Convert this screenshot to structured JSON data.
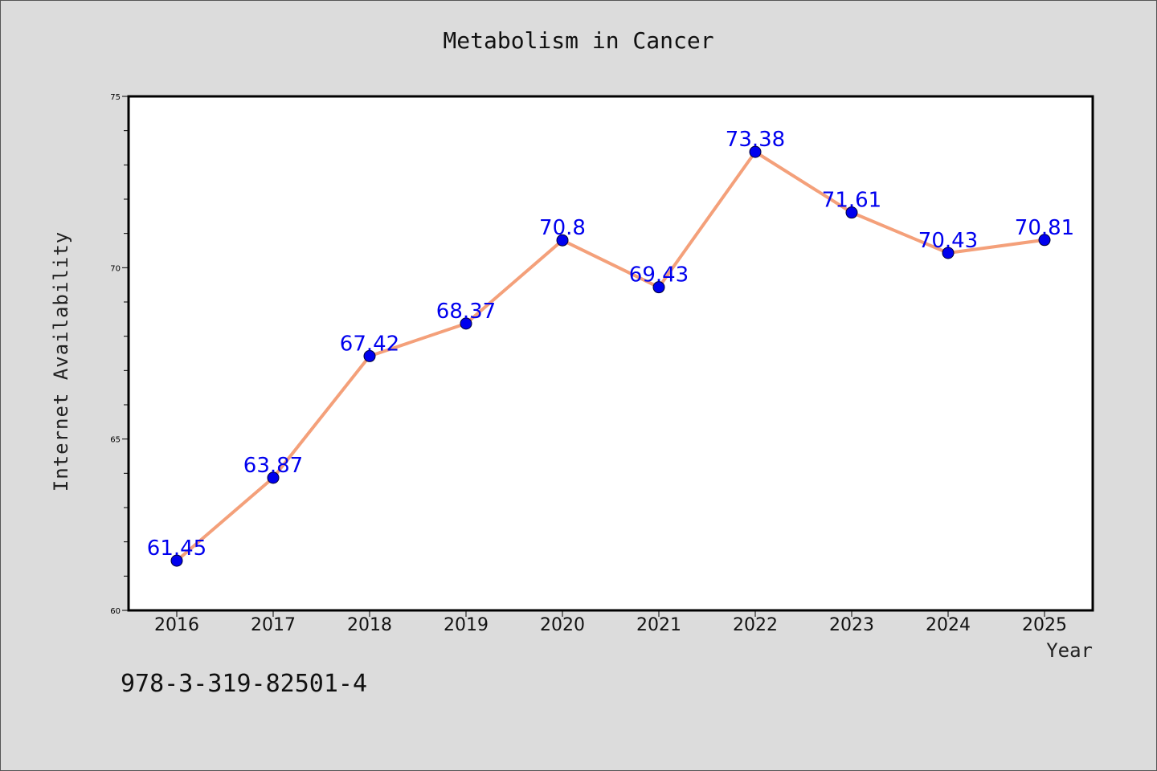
{
  "chart_data": {
    "type": "line",
    "title": "Metabolism in Cancer",
    "xlabel": "Year",
    "ylabel": "Internet Availability",
    "x": [
      "2016",
      "2017",
      "2018",
      "2019",
      "2020",
      "2021",
      "2022",
      "2023",
      "2024",
      "2025"
    ],
    "series": [
      {
        "values": [
          61.45,
          63.87,
          67.42,
          68.37,
          70.8,
          69.43,
          73.38,
          71.61,
          70.43,
          70.81
        ]
      }
    ],
    "data_labels": [
      "61.45",
      "63.87",
      "67.42",
      "68.37",
      "70.8",
      "69.43",
      "73.38",
      "71.61",
      "70.43",
      "70.81"
    ],
    "ylim": [
      60,
      75
    ],
    "yticks": [
      "60",
      "65",
      "70",
      "75"
    ],
    "grid": false,
    "colors": {
      "line": "#f4a07a",
      "marker": "#0000ee",
      "label": "#0000ee",
      "background": "#dcdcdc",
      "plot_bg": "#ffffff"
    }
  },
  "footer_text": "978-3-319-82501-4"
}
